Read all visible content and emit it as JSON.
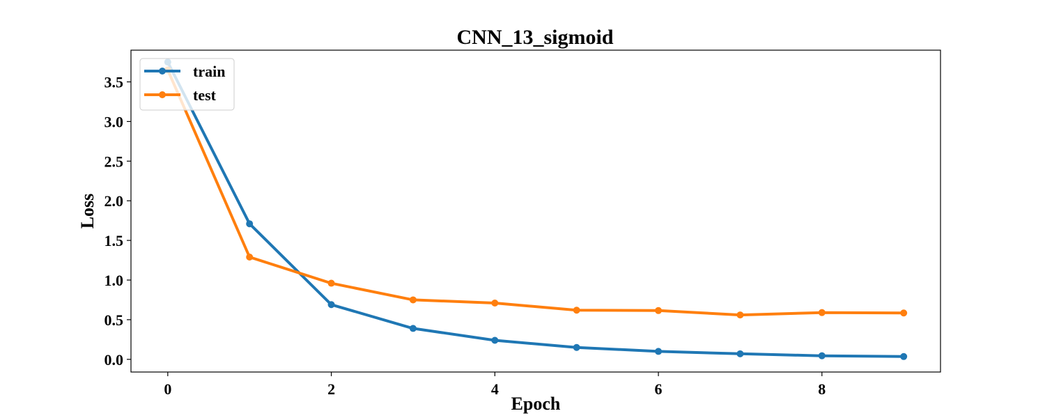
{
  "chart_data": {
    "type": "line",
    "title": "CNN_13_sigmoid",
    "xlabel": "Epoch",
    "ylabel": "Loss",
    "x": [
      0,
      1,
      2,
      3,
      4,
      5,
      6,
      7,
      8,
      9
    ],
    "xlim": [
      -0.45,
      9.45
    ],
    "ylim": [
      -0.16,
      3.9
    ],
    "xticks": [
      0,
      2,
      4,
      6,
      8
    ],
    "yticks": [
      0.0,
      0.5,
      1.0,
      1.5,
      2.0,
      2.5,
      3.0,
      3.5
    ],
    "ytick_labels": [
      "0.0",
      "0.5",
      "1.0",
      "1.5",
      "2.0",
      "2.5",
      "3.0",
      "3.5"
    ],
    "grid": false,
    "legend_position": "top-left",
    "series": [
      {
        "name": "train",
        "color": "#1f77b4",
        "marker": "circle",
        "values": [
          3.75,
          1.71,
          0.69,
          0.39,
          0.24,
          0.15,
          0.1,
          0.07,
          0.045,
          0.035
        ]
      },
      {
        "name": "test",
        "color": "#ff7f0e",
        "marker": "circle",
        "values": [
          3.65,
          1.29,
          0.96,
          0.75,
          0.71,
          0.62,
          0.615,
          0.56,
          0.59,
          0.585
        ]
      }
    ]
  }
}
